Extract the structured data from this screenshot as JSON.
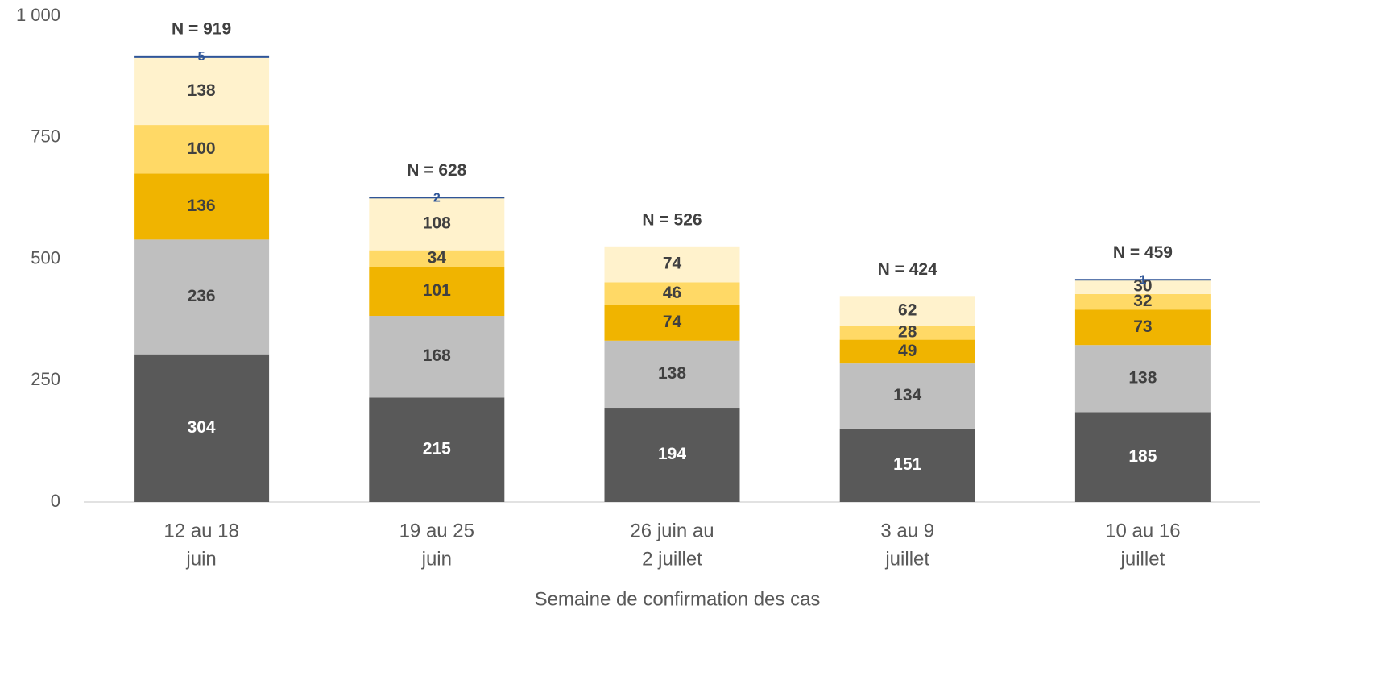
{
  "chart_data": {
    "type": "stacked_bar",
    "xlabel": "Semaine de confirmation des cas",
    "categories": [
      [
        "12 au 18",
        "juin"
      ],
      [
        "19 au 25",
        "juin"
      ],
      [
        "26 juin au",
        "2 juillet"
      ],
      [
        "3 au 9",
        "juillet"
      ],
      [
        "10 au 16",
        "juillet"
      ]
    ],
    "series": [
      {
        "color": "#595959",
        "label_color": "#ffffff",
        "values": [
          304,
          215,
          194,
          151,
          185
        ]
      },
      {
        "color": "#bfbfbf",
        "label_color": "#404040",
        "values": [
          236,
          168,
          138,
          134,
          138
        ]
      },
      {
        "color": "#f0b400",
        "label_color": "#404040",
        "values": [
          136,
          101,
          74,
          49,
          73
        ]
      },
      {
        "color": "#ffd966",
        "label_color": "#404040",
        "values": [
          100,
          34,
          46,
          28,
          32
        ]
      },
      {
        "color": "#fff2cc",
        "label_color": "#404040",
        "values": [
          138,
          108,
          74,
          62,
          30
        ]
      },
      {
        "color": "#2f5597",
        "label_color": "#2f5597",
        "values": [
          5,
          2,
          null,
          null,
          1
        ]
      }
    ],
    "total_labels": [
      "N = 919",
      "N = 628",
      "N = 526",
      "N = 424",
      "N = 459"
    ],
    "ylim": [
      0,
      1000
    ],
    "yticks": [
      0,
      250,
      500,
      750,
      {
        "value": 1000,
        "label": "1 000"
      }
    ]
  }
}
